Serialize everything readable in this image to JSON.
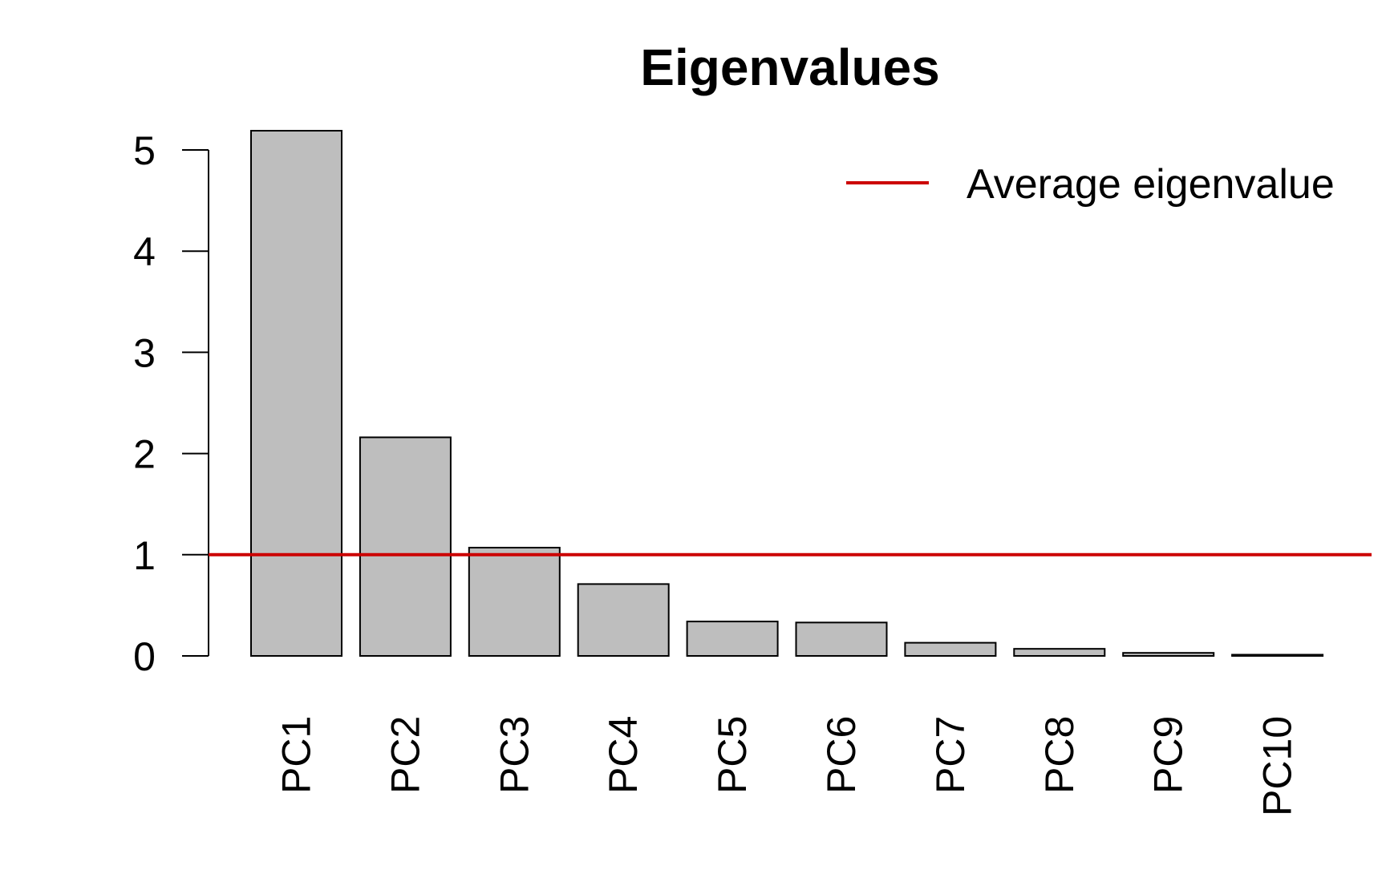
{
  "chart_data": {
    "type": "bar",
    "title": "Eigenvalues",
    "xlabel": "",
    "ylabel": "",
    "categories": [
      "PC1",
      "PC2",
      "PC3",
      "PC4",
      "PC5",
      "PC6",
      "PC7",
      "PC8",
      "PC9",
      "PC10"
    ],
    "values": [
      5.19,
      2.16,
      1.07,
      0.71,
      0.34,
      0.33,
      0.13,
      0.07,
      0.03,
      0.01
    ],
    "ylim": [
      0,
      5
    ],
    "yticks": [
      0,
      1,
      2,
      3,
      4,
      5
    ],
    "grid": false,
    "bar_color": "#bebebe",
    "reference_line": {
      "label": "Average eigenvalue",
      "value": 1,
      "color": "#cc0000"
    },
    "legend": {
      "placement": "top-right",
      "entries": [
        "Average eigenvalue"
      ]
    }
  }
}
